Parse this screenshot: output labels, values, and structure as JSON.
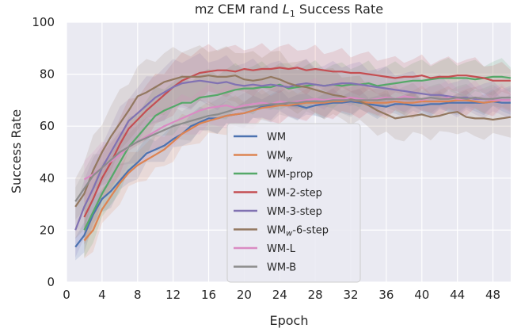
{
  "chart_data": {
    "type": "line",
    "title_prefix": "mz CEM rand ",
    "title_math_base": "L",
    "title_math_sub": "1",
    "title_suffix": " Success Rate",
    "title": "mz CEM rand L1 Success Rate",
    "xlabel": "Epoch",
    "ylabel": "Success Rate",
    "xlim": [
      0,
      50
    ],
    "ylim": [
      0,
      100
    ],
    "xticks": [
      0,
      4,
      8,
      12,
      16,
      20,
      24,
      28,
      32,
      36,
      40,
      44,
      48
    ],
    "xtick_labels": [
      "0",
      "4",
      "8",
      "12",
      "16",
      "20",
      "24",
      "28",
      "32",
      "36",
      "40",
      "44",
      "48"
    ],
    "yticks": [
      0,
      20,
      40,
      60,
      80,
      100
    ],
    "ytick_labels": [
      "0",
      "20",
      "40",
      "60",
      "80",
      "100"
    ],
    "grid": true,
    "legend_position": "center",
    "colors": {
      "background": "#eaeaf2",
      "grid": "#ffffff"
    },
    "x_start": 1,
    "x_step": 1,
    "series": [
      {
        "name": "WM",
        "color": "#4c72b0",
        "band": 2,
        "values": [
          13.5,
          18,
          26,
          32,
          35,
          39,
          43,
          46,
          49.5,
          51,
          52.5,
          55,
          57,
          60,
          61.5,
          63,
          63,
          64,
          64.5,
          65,
          66,
          67.5,
          68,
          68.5,
          68,
          68,
          67,
          68,
          68.5,
          69,
          69,
          69.5,
          69,
          68.5,
          68,
          67.5,
          68.5,
          68.5,
          68,
          68,
          68.5,
          68.5,
          69,
          69,
          69,
          69,
          69,
          69.5,
          69,
          69
        ]
      },
      {
        "name": "WMw",
        "label_base": "WM",
        "label_sub": "w",
        "color": "#dd8452",
        "band": 3,
        "values": [
          null,
          16,
          20,
          28,
          33,
          38,
          42,
          45,
          47,
          49,
          51,
          54,
          57,
          59,
          61,
          62,
          63,
          64,
          64.5,
          65,
          66,
          67,
          67.5,
          68,
          68,
          68.5,
          69,
          69,
          69,
          69.5,
          69.5,
          70,
          69.5,
          69,
          69,
          69,
          69.5,
          69,
          69,
          69.5,
          69.5,
          69.5,
          69.5,
          70,
          70,
          69.5,
          69,
          69.5,
          70,
          70
        ]
      },
      {
        "name": "WM-prop",
        "color": "#55a868",
        "band": 5,
        "values": [
          null,
          20,
          27,
          34,
          40,
          46,
          52,
          56,
          60,
          64,
          66,
          67.5,
          69,
          69,
          71,
          71.5,
          72,
          73,
          74,
          74.5,
          74.5,
          75,
          75,
          76,
          74.5,
          75,
          75.5,
          76,
          75.5,
          76,
          75.5,
          76,
          76,
          76.5,
          75.5,
          76,
          76.5,
          77,
          77.5,
          77.5,
          78,
          78.5,
          78.5,
          78.5,
          78.5,
          78,
          78.5,
          79,
          79,
          78.5
        ]
      },
      {
        "name": "WM-2-step",
        "color": "#c44e52",
        "band": 5,
        "values": [
          null,
          25,
          32,
          40,
          46,
          53,
          59,
          62.5,
          66,
          69,
          72,
          75,
          77.5,
          79,
          80.5,
          81,
          81.5,
          81.5,
          81,
          82,
          81.5,
          82,
          82,
          82.5,
          82,
          82.5,
          81.5,
          82,
          81.5,
          81,
          81,
          80.5,
          80.5,
          80,
          79.5,
          79,
          78.5,
          79,
          79,
          79.5,
          78.5,
          79,
          79,
          79.5,
          79.5,
          79,
          78.5,
          77.5,
          77.5,
          77.5
        ]
      },
      {
        "name": "WM-3-step",
        "color": "#8172b2",
        "band": 5,
        "values": [
          20,
          29,
          36,
          44,
          50,
          56,
          62,
          65,
          68,
          71,
          73,
          75,
          76.5,
          77,
          77.5,
          77,
          76.5,
          77,
          76,
          75.5,
          76,
          75.5,
          76,
          75.5,
          75,
          76,
          76.5,
          76,
          75.5,
          76,
          76.5,
          76.5,
          76,
          75.5,
          75,
          74.5,
          74,
          73.5,
          73,
          72.5,
          72,
          72,
          71.5,
          71,
          71,
          70.5,
          70.5,
          70,
          70,
          70
        ]
      },
      {
        "name": "WMw-6-step",
        "label_base": "WM",
        "label_sub": "w",
        "label_suffix": "-6-step",
        "color": "#937860",
        "band": 6,
        "values": [
          29,
          34,
          43,
          50,
          56,
          61,
          66,
          71.5,
          73,
          75,
          77,
          78,
          79,
          79,
          79,
          79.5,
          79,
          79,
          79.5,
          78,
          77.5,
          78,
          79,
          78,
          76.5,
          75.5,
          75,
          74,
          73,
          72,
          71.5,
          70.5,
          69.5,
          68,
          66,
          64.5,
          63,
          63.5,
          64,
          64.5,
          63.5,
          64,
          65,
          65.5,
          63.5,
          63,
          63,
          62.5,
          63,
          63.5
        ]
      },
      {
        "name": "WM-L",
        "color": "#da8bc3",
        "band": 4,
        "values": [
          null,
          39.5,
          41.5,
          44,
          46.5,
          49,
          52,
          54,
          56,
          58,
          60,
          61.5,
          63,
          64.5,
          66,
          67,
          67.5,
          68,
          67,
          68,
          68.5,
          69,
          68.5,
          69.5,
          69,
          69.5,
          70,
          70.5,
          70,
          70.5,
          70.5,
          71,
          70.5,
          70,
          70.5,
          71,
          70.5,
          71.5,
          71,
          70,
          71,
          70.5,
          71,
          70.5,
          70.5,
          71,
          70.5,
          70,
          70,
          70
        ]
      },
      {
        "name": "WM-B",
        "color": "#8c8c8c",
        "band": 3,
        "values": [
          31,
          36,
          41,
          44,
          47,
          50,
          52,
          54,
          55.5,
          57,
          58.5,
          60,
          61,
          62,
          63,
          64,
          64.5,
          65.5,
          66.5,
          67,
          67.5,
          68,
          68.5,
          68.5,
          69,
          69,
          69.5,
          69.5,
          69.5,
          70,
          70,
          70,
          70,
          70,
          70,
          70.5,
          70.5,
          70.5,
          70.5,
          70.5,
          71,
          70.5,
          70.5,
          71,
          70.5,
          71,
          70.5,
          70.5,
          71,
          71
        ]
      }
    ]
  }
}
